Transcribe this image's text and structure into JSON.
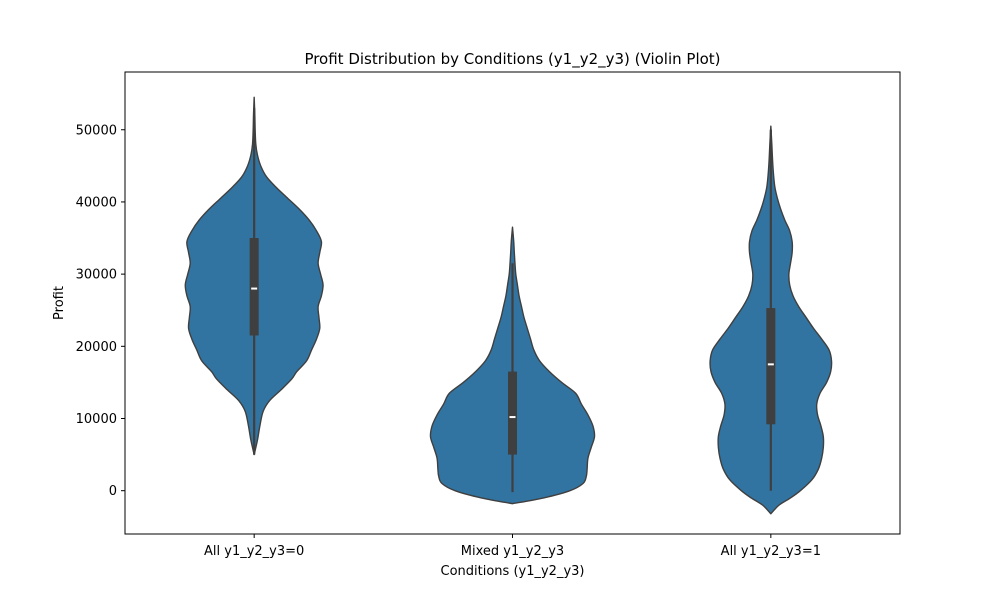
{
  "chart_data": {
    "type": "violin",
    "title": "Profit Distribution by Conditions (y1_y2_y3) (Violin Plot)",
    "xlabel": "Conditions (y1_y2_y3)",
    "ylabel": "Profit",
    "categories": [
      "All y1_y2_y3=0",
      "Mixed y1_y2_y3",
      "All y1_y2_y3=1"
    ],
    "ylim": [
      -6000,
      58000
    ],
    "yticks": [
      0,
      10000,
      20000,
      30000,
      40000,
      50000
    ],
    "ytick_labels": [
      "0",
      "10000",
      "20000",
      "30000",
      "40000",
      "50000"
    ],
    "grid": false,
    "legend": "none",
    "colors": {
      "violin_fill": "#3274a1",
      "outline": "#3f3f3f",
      "box": "#3f3f3f",
      "median": "#ffffff"
    },
    "violins": [
      {
        "category": "All y1_y2_y3=0",
        "q1": 21500,
        "median": 28000,
        "q3": 35000,
        "whisker_low": 5000,
        "whisker_high": 53000,
        "profile": [
          [
            5000,
            0.0
          ],
          [
            7000,
            0.04
          ],
          [
            9000,
            0.07
          ],
          [
            11000,
            0.11
          ],
          [
            12500,
            0.19
          ],
          [
            14000,
            0.33
          ],
          [
            15500,
            0.46
          ],
          [
            16500,
            0.52
          ],
          [
            18000,
            0.64
          ],
          [
            19500,
            0.7
          ],
          [
            21000,
            0.76
          ],
          [
            22500,
            0.8
          ],
          [
            24000,
            0.79
          ],
          [
            25500,
            0.78
          ],
          [
            27000,
            0.82
          ],
          [
            28500,
            0.84
          ],
          [
            30000,
            0.81
          ],
          [
            31500,
            0.78
          ],
          [
            33000,
            0.8
          ],
          [
            34500,
            0.82
          ],
          [
            36000,
            0.76
          ],
          [
            37500,
            0.67
          ],
          [
            39000,
            0.55
          ],
          [
            40500,
            0.41
          ],
          [
            42000,
            0.27
          ],
          [
            43500,
            0.15
          ],
          [
            45000,
            0.08
          ],
          [
            46500,
            0.04
          ],
          [
            48000,
            0.02
          ],
          [
            50000,
            0.012
          ],
          [
            52000,
            0.008
          ],
          [
            54500,
            0.0
          ]
        ]
      },
      {
        "category": "Mixed y1_y2_y3",
        "q1": 5000,
        "median": 10200,
        "q3": 16500,
        "whisker_low": -200,
        "whisker_high": 31500,
        "profile": [
          [
            -1800,
            0.0
          ],
          [
            -1000,
            0.38
          ],
          [
            0,
            0.7
          ],
          [
            1000,
            0.86
          ],
          [
            2000,
            0.9
          ],
          [
            3000,
            0.91
          ],
          [
            4500,
            0.92
          ],
          [
            6000,
            0.96
          ],
          [
            7500,
            1.0
          ],
          [
            9000,
            0.98
          ],
          [
            10500,
            0.92
          ],
          [
            12000,
            0.84
          ],
          [
            13500,
            0.77
          ],
          [
            15000,
            0.6
          ],
          [
            16500,
            0.45
          ],
          [
            18000,
            0.33
          ],
          [
            19500,
            0.26
          ],
          [
            21000,
            0.22
          ],
          [
            22500,
            0.18
          ],
          [
            24000,
            0.14
          ],
          [
            25500,
            0.11
          ],
          [
            27000,
            0.08
          ],
          [
            28500,
            0.06
          ],
          [
            30000,
            0.04
          ],
          [
            31500,
            0.03
          ],
          [
            33000,
            0.022
          ],
          [
            34500,
            0.015
          ],
          [
            36500,
            0.0
          ]
        ]
      },
      {
        "category": "All y1_y2_y3=1",
        "q1": 9200,
        "median": 17500,
        "q3": 25300,
        "whisker_low": 0,
        "whisker_high": 50000,
        "profile": [
          [
            -3200,
            0.0
          ],
          [
            -2000,
            0.1
          ],
          [
            -1000,
            0.24
          ],
          [
            0,
            0.36
          ],
          [
            1500,
            0.5
          ],
          [
            3000,
            0.58
          ],
          [
            4500,
            0.62
          ],
          [
            6000,
            0.64
          ],
          [
            7500,
            0.64
          ],
          [
            9000,
            0.61
          ],
          [
            10500,
            0.57
          ],
          [
            12000,
            0.56
          ],
          [
            13500,
            0.6
          ],
          [
            15000,
            0.68
          ],
          [
            16500,
            0.73
          ],
          [
            18000,
            0.74
          ],
          [
            19500,
            0.71
          ],
          [
            21000,
            0.62
          ],
          [
            22500,
            0.52
          ],
          [
            24000,
            0.43
          ],
          [
            25500,
            0.34
          ],
          [
            27000,
            0.27
          ],
          [
            28500,
            0.23
          ],
          [
            30000,
            0.22
          ],
          [
            31500,
            0.24
          ],
          [
            33000,
            0.26
          ],
          [
            34500,
            0.26
          ],
          [
            36000,
            0.23
          ],
          [
            37500,
            0.17
          ],
          [
            39000,
            0.12
          ],
          [
            40500,
            0.08
          ],
          [
            42000,
            0.05
          ],
          [
            43500,
            0.035
          ],
          [
            45000,
            0.025
          ],
          [
            46500,
            0.018
          ],
          [
            48000,
            0.012
          ],
          [
            50500,
            0.0
          ]
        ]
      }
    ]
  }
}
